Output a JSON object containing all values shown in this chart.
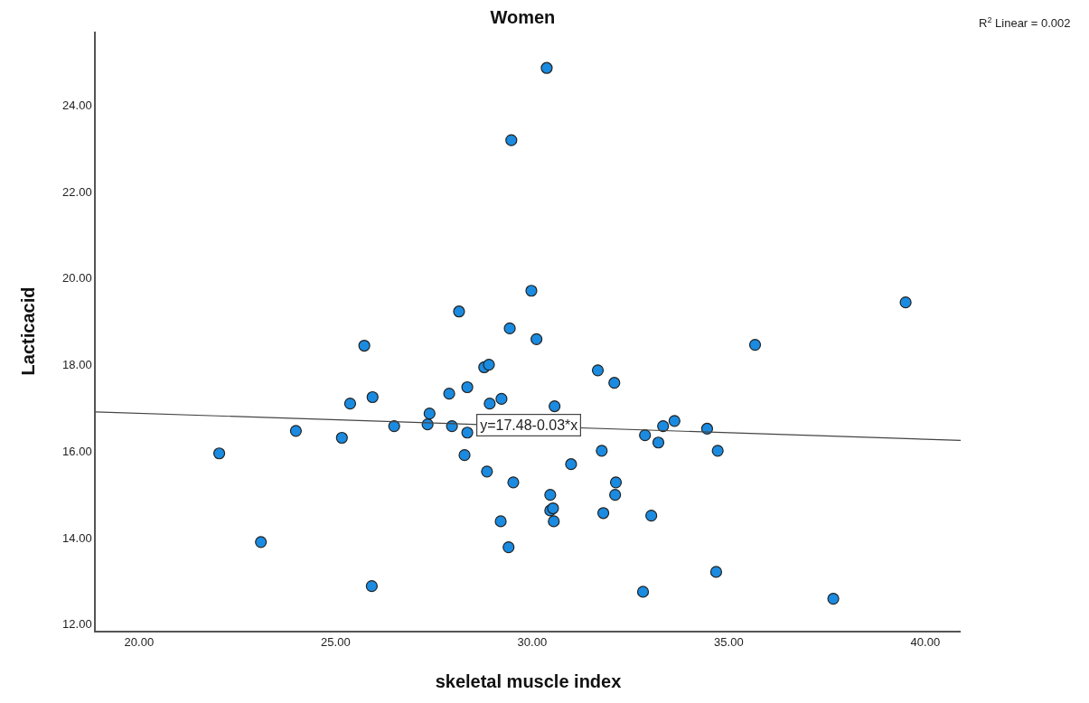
{
  "chart_data": {
    "type": "scatter",
    "title": "Women",
    "xlabel": "skeletal muscle index",
    "ylabel": "Lacticacid",
    "xlim": [
      18.9,
      40.9
    ],
    "xticks": [
      {
        "value": 20,
        "label": "20.00"
      },
      {
        "value": 25,
        "label": "25.00"
      },
      {
        "value": 30,
        "label": "30.00"
      },
      {
        "value": 35,
        "label": "35.00"
      },
      {
        "value": 40,
        "label": "40.00"
      }
    ],
    "ylim": [
      11.85,
      25.7
    ],
    "yticks": [
      {
        "value": 12,
        "label": "12.00"
      },
      {
        "value": 14,
        "label": "14.00"
      },
      {
        "value": 16,
        "label": "16.00"
      },
      {
        "value": 18,
        "label": "18.00"
      },
      {
        "value": 20,
        "label": "20.00"
      },
      {
        "value": 22,
        "label": "22.00"
      },
      {
        "value": 24,
        "label": "24.00"
      }
    ],
    "legend": false,
    "series": [
      {
        "marker": "circle",
        "color": "#1a8be0",
        "x": [
          22.04,
          23.1,
          23.99,
          25.16,
          25.37,
          25.73,
          25.92,
          25.94,
          26.49,
          27.34,
          27.39,
          27.89,
          27.96,
          28.14,
          28.28,
          28.35,
          28.35,
          28.78,
          28.9,
          28.85,
          28.92,
          29.22,
          29.2,
          29.4,
          29.43,
          29.52,
          29.47,
          30.37,
          29.98,
          30.11,
          30.57,
          30.46,
          30.46,
          30.53,
          30.55,
          30.99,
          31.67,
          32.09,
          31.77,
          32.13,
          32.11,
          31.81,
          32.87,
          33.21,
          33.33,
          33.62,
          33.03,
          34.45,
          34.72,
          35.67,
          39.5,
          34.68,
          32.82,
          37.66
        ],
        "values": [
          15.95,
          13.9,
          16.47,
          16.31,
          17.1,
          18.44,
          12.88,
          17.25,
          16.58,
          16.62,
          16.87,
          17.33,
          16.58,
          19.23,
          15.91,
          17.48,
          16.43,
          17.94,
          18.0,
          15.53,
          17.1,
          17.21,
          14.38,
          13.78,
          18.84,
          15.28,
          23.19,
          24.86,
          19.71,
          18.59,
          17.04,
          14.99,
          14.63,
          14.68,
          14.38,
          15.7,
          17.87,
          17.58,
          16.01,
          15.28,
          14.99,
          14.57,
          16.37,
          16.2,
          16.58,
          16.7,
          14.51,
          16.52,
          16.01,
          18.46,
          19.44,
          13.21,
          12.75,
          12.59
        ]
      },
      {
        "type": "line",
        "marker": "none",
        "color": "#444444",
        "x": [
          18.9,
          40.9
        ],
        "values": [
          16.91,
          16.25
        ]
      }
    ],
    "annotations": [
      "R$^{2}$ Linear = 0.002",
      {
        "text": "y=17.48-0.03*x",
        "x": 29.9,
        "y": 16.6
      }
    ]
  }
}
